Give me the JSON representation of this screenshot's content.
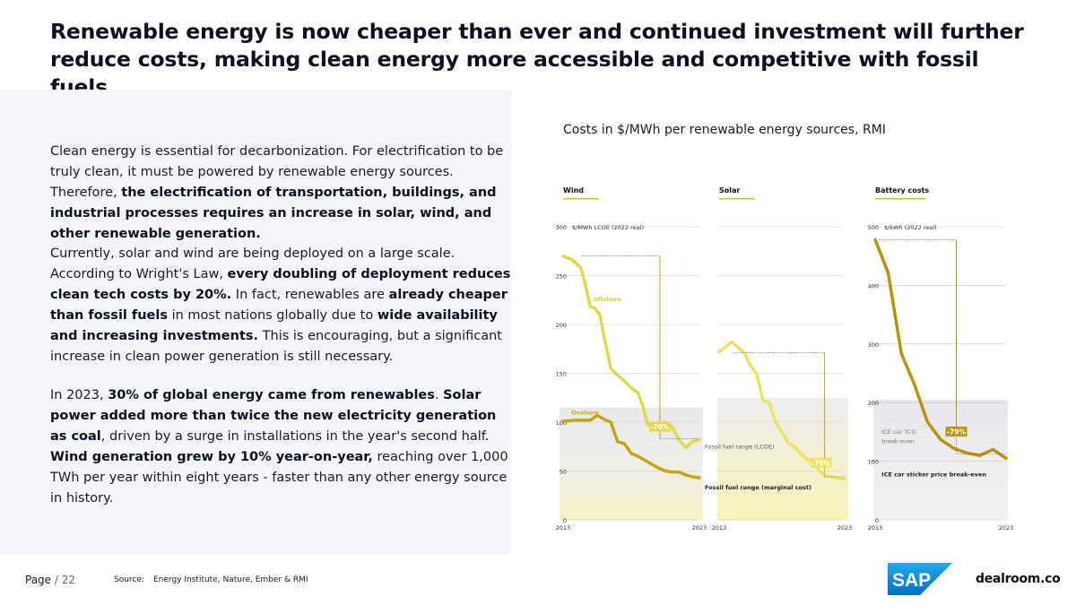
{
  "headline": "Renewable energy is now cheaper than ever and continued investment will further reduce costs, making clean energy more accessible and competitive with fossil fuels.",
  "paragraphs": [
    {
      "segments": [
        {
          "text": "Clean energy is essential for decarbonization. For electrification to be truly clean, it must be powered by renewable energy sources. Therefore, ",
          "bold": false
        },
        {
          "text": "the electrification of transportation, buildings, and industrial processes requires an increase in solar, wind, and other renewable generation.",
          "bold": true
        }
      ]
    },
    {
      "segments": [
        {
          "text": "Currently, solar and wind are being deployed on a large scale. According to Wright's Law, ",
          "bold": false
        },
        {
          "text": "every doubling of deployment reduces clean tech costs by 20%.",
          "bold": true
        },
        {
          "text": " In fact, renewables are ",
          "bold": false
        },
        {
          "text": "already cheaper than fossil fuels",
          "bold": true
        },
        {
          "text": " in most nations globally due to ",
          "bold": false
        },
        {
          "text": "wide availability and increasing investments.",
          "bold": true
        },
        {
          "text": " This is encouraging, but a significant increase in clean power generation is still necessary.",
          "bold": false
        }
      ]
    },
    {
      "segments": [
        {
          "text": "In 2023, ",
          "bold": false
        },
        {
          "text": "30% of global energy came from renewables",
          "bold": true
        },
        {
          "text": ". ",
          "bold": false
        },
        {
          "text": "Solar power added more than twice the new electricity generation as coal",
          "bold": true
        },
        {
          "text": ", driven by a surge in installations in the year's second half. ",
          "bold": false
        },
        {
          "text": "Wind generation grew by 10% year-on-year,",
          "bold": true
        },
        {
          "text": " reaching over 1,000 TWh per year within eight years - faster than any other energy source in history.",
          "bold": false
        }
      ]
    }
  ],
  "chart_title": "Costs in $/MWh per renewable energy sources, RMI",
  "colors": {
    "offshore": "#e2d94a",
    "onshore": "#c2a712",
    "solar": "#ece360",
    "battery": "#b8940c",
    "label_offshore": "#d8cf3a",
    "label_onshore": "#c9ad1c",
    "header_underline": "#d1c533"
  },
  "chart_data": [
    {
      "type": "line",
      "panel_title": "Wind",
      "unit_label": "$/MWh LCOE (2022 real)",
      "ylim": [
        0,
        300
      ],
      "y_ticks": [
        0,
        50,
        100,
        150,
        200,
        250,
        300
      ],
      "x_ticks": [
        "2013",
        "2023"
      ],
      "xlim": [
        2013,
        2023
      ],
      "grid": true,
      "series": [
        {
          "name": "Offshore",
          "x": [
            2013,
            2013.7,
            2014.3,
            2014.6,
            2015,
            2015.3,
            2015.7,
            2016,
            2016.5,
            2017,
            2017.5,
            2018,
            2018.5,
            2018.8,
            2019.2,
            2019.5,
            2020,
            2020.5,
            2021,
            2021.5,
            2022,
            2022.5,
            2023
          ],
          "y": [
            270,
            266,
            258,
            243,
            218,
            217,
            210,
            188,
            155,
            148,
            142,
            135,
            130,
            118,
            98,
            96,
            96,
            100,
            95,
            82,
            74,
            80,
            82
          ]
        },
        {
          "name": "Onshore",
          "x": [
            2013,
            2014,
            2015,
            2015.5,
            2016,
            2016.5,
            2017,
            2017.5,
            2018,
            2018.5,
            2019,
            2019.5,
            2020,
            2020.5,
            2021,
            2021.5,
            2022,
            2022.5,
            2023
          ],
          "y": [
            101,
            102,
            102,
            107,
            103,
            100,
            80,
            78,
            68,
            65,
            61,
            57,
            53,
            50,
            49,
            49,
            46,
            44,
            43
          ]
        }
      ],
      "annotation": "-70%",
      "range_label": "Fossil fuel range (LCOE)"
    },
    {
      "type": "line",
      "panel_title": "Solar",
      "ylim": [
        0,
        300
      ],
      "x_ticks": [
        "2013",
        "2023"
      ],
      "xlim": [
        2013,
        2023
      ],
      "grid": true,
      "series": [
        {
          "name": "Solar",
          "x": [
            2013,
            2014,
            2015,
            2015.5,
            2016,
            2016.5,
            2017,
            2017.5,
            2018,
            2018.5,
            2019,
            2019.5,
            2020,
            2020.5,
            2021,
            2021.5,
            2022,
            2022.5,
            2023
          ],
          "y": [
            172,
            182,
            171,
            158,
            149,
            122,
            120,
            100,
            90,
            79,
            75,
            68,
            62,
            59,
            50,
            45,
            44,
            42,
            42
          ]
        }
      ],
      "annotation": "-76%",
      "range_label": "Fossil fuel range (marginal cost)"
    },
    {
      "type": "line",
      "panel_title": "Battery costs",
      "unit_label": "$/kWh (2022 real)",
      "ylim": [
        0,
        500
      ],
      "y_ticks": [
        0,
        100,
        200,
        300,
        400,
        500
      ],
      "x_ticks": [
        "2013",
        "2023"
      ],
      "xlim": [
        2013,
        2023
      ],
      "grid": true,
      "series": [
        {
          "name": "Battery costs",
          "x": [
            2013,
            2014,
            2015,
            2016,
            2017,
            2018,
            2019,
            2020,
            2021,
            2022,
            2023
          ],
          "y": [
            478,
            421,
            284,
            231,
            167,
            137,
            122,
            114,
            110,
            120,
            105
          ]
        }
      ],
      "annotation": "-79%",
      "labels": [
        "ICE car TCO break-even",
        "ICE car sticker price break-even"
      ]
    }
  ],
  "footer": {
    "page_label": "Page",
    "page_number": "/ 22",
    "source_label": "Source:",
    "source": "Energy Institute, Nature, Ember & RMI"
  },
  "logos": {
    "sap": "SAP",
    "dealroom": "dealroom.co"
  }
}
